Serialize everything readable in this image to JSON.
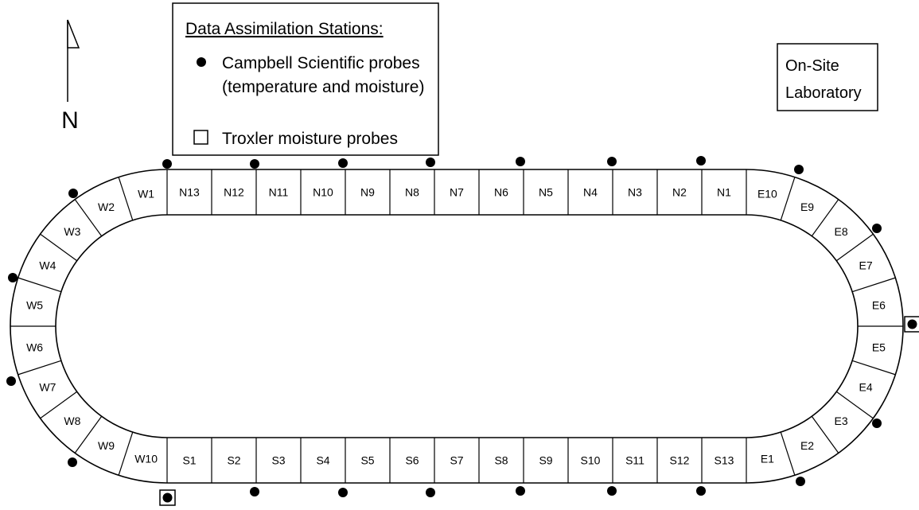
{
  "north_arrow": {
    "label": "N",
    "icon": "north-arrow-icon"
  },
  "legend": {
    "title": "Data Assimilation Stations:",
    "items": [
      {
        "symbol": "filled-circle-icon",
        "text_lines": [
          "Campbell Scientific probes",
          "(temperature and moisture)"
        ]
      },
      {
        "symbol": "open-square-icon",
        "text_lines": [
          "Troxler moisture probes"
        ]
      }
    ]
  },
  "lab": {
    "lines": [
      "On-Site",
      "Laboratory"
    ]
  },
  "track": {
    "north_sections": [
      "N13",
      "N12",
      "N11",
      "N10",
      "N9",
      "N8",
      "N7",
      "N6",
      "N5",
      "N4",
      "N3",
      "N2",
      "N1"
    ],
    "south_sections": [
      "S1",
      "S2",
      "S3",
      "S4",
      "S5",
      "S6",
      "S7",
      "S8",
      "S9",
      "S10",
      "S11",
      "S12",
      "S13"
    ],
    "west_sections": [
      "W1",
      "W2",
      "W3",
      "W4",
      "W5",
      "W6",
      "W7",
      "W8",
      "W9",
      "W10"
    ],
    "east_sections": [
      "E1",
      "E2",
      "E3",
      "E4",
      "E5",
      "E6",
      "E7",
      "E8",
      "E9",
      "E10"
    ]
  }
}
